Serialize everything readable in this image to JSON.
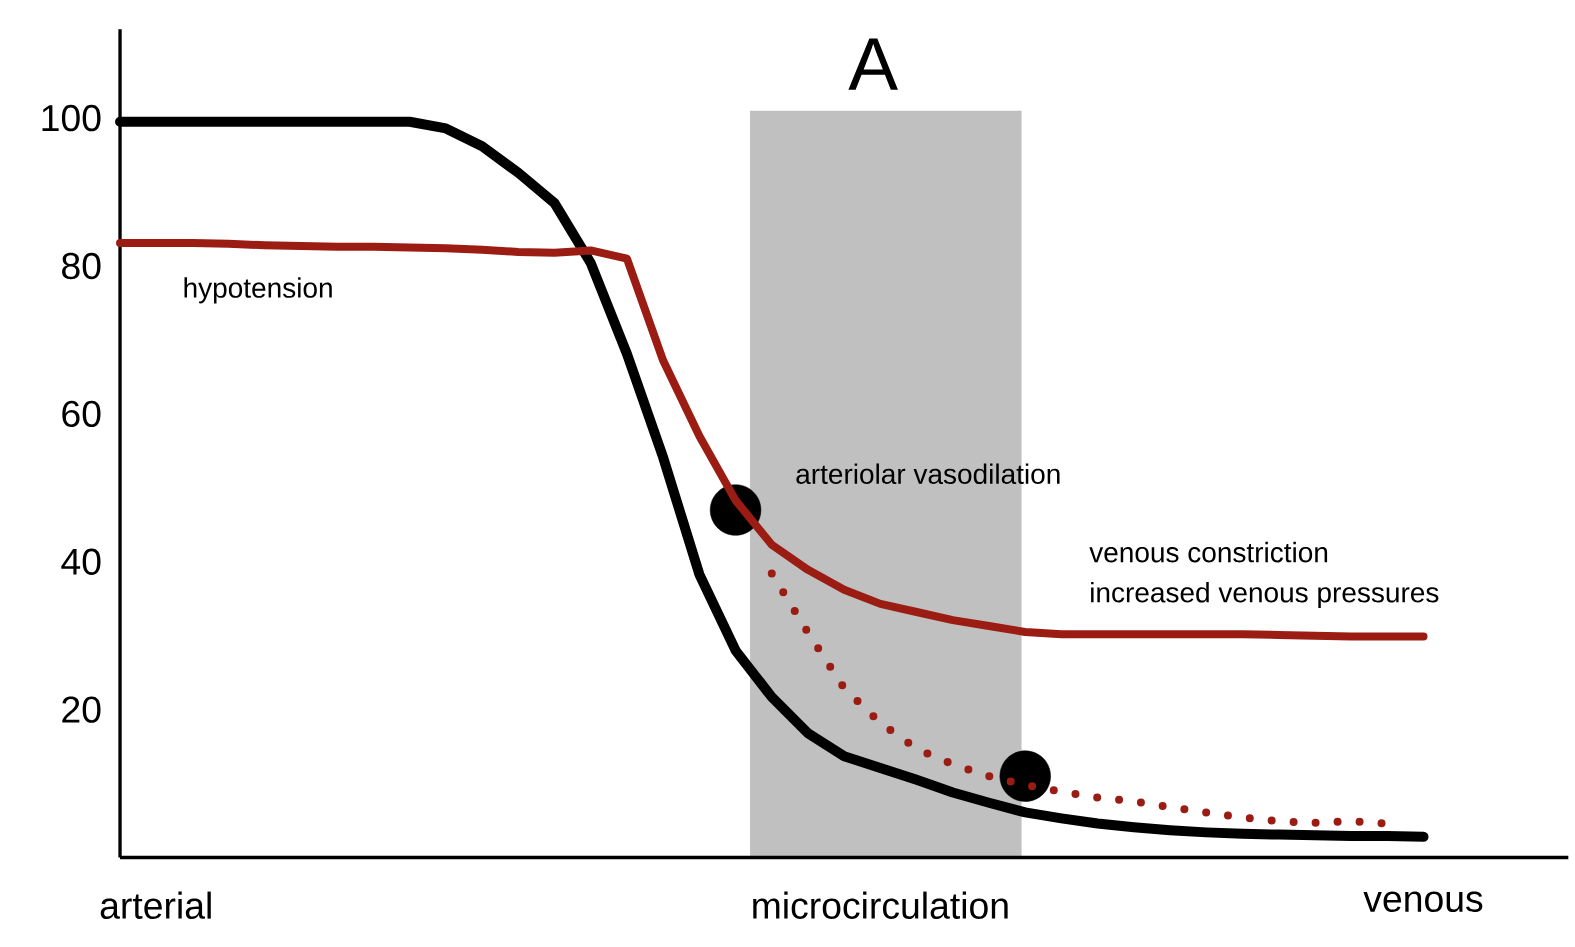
{
  "chart_data": {
    "type": "line",
    "title": "A",
    "ylim": [
      0,
      112
    ],
    "categories": [
      null,
      "arterial",
      null,
      null,
      null,
      null,
      null,
      null,
      null,
      null,
      null,
      null,
      null,
      null,
      null,
      null,
      null,
      null,
      null,
      null,
      null,
      "microcirculation",
      null,
      null,
      null,
      null,
      null,
      null,
      null,
      null,
      null,
      null,
      null,
      null,
      null,
      null,
      "venous",
      null,
      null,
      null,
      null
    ],
    "yticks": [
      20,
      40,
      60,
      80,
      100
    ],
    "series": [
      {
        "type": "scatter",
        "color": "#000000",
        "values": [
          null,
          null,
          null,
          null,
          null,
          null,
          null,
          null,
          null,
          null,
          null,
          null,
          null,
          null,
          null,
          null,
          null,
          47,
          null,
          null,
          null,
          null,
          null,
          null,
          null,
          11,
          null,
          null,
          null,
          null,
          null,
          null,
          null,
          null,
          null,
          null,
          null,
          null,
          null,
          null,
          null
        ]
      },
      {
        "color": "#000000",
        "line_style": "solid",
        "values": [
          99.5,
          99.5,
          99.5,
          99.5,
          99.5,
          99.5,
          99.5,
          99.5,
          99.5,
          98.6,
          96.2,
          92.6,
          88.5,
          80.4,
          68.1,
          54.1,
          38.3,
          28.0,
          21.7,
          16.8,
          13.7,
          12.1,
          10.5,
          8.8,
          7.4,
          6.1,
          5.3,
          4.6,
          4.1,
          3.7,
          3.4,
          3.2,
          3.1,
          3.0,
          2.9,
          2.9,
          2.8,
          null,
          null,
          null,
          null
        ]
      },
      {
        "color": "#9b1c12",
        "line_style": "solid",
        "values": [
          83.1,
          83.1,
          83.1,
          83.0,
          82.8,
          82.7,
          82.6,
          82.6,
          82.5,
          82.4,
          82.2,
          81.9,
          81.8,
          82.1,
          81.0,
          67.2,
          57.0,
          48.3,
          42.3,
          38.9,
          36.2,
          34.3,
          33.2,
          32.1,
          31.3,
          30.5,
          30.2,
          30.2,
          30.2,
          30.2,
          30.2,
          30.2,
          30.1,
          30.0,
          29.9,
          29.9,
          29.9,
          null,
          null,
          null,
          null
        ]
      },
      {
        "color": "#9b1c12",
        "line_style": "dotted",
        "values": [
          null,
          null,
          null,
          null,
          null,
          null,
          null,
          null,
          null,
          null,
          null,
          null,
          null,
          null,
          null,
          null,
          null,
          null,
          38.4,
          30.4,
          22.9,
          18.2,
          14.7,
          12.6,
          11.0,
          9.8,
          8.9,
          8.1,
          7.6,
          6.8,
          6.1,
          5.4,
          4.9,
          4.7,
          4.9,
          4.6,
          null,
          null,
          null,
          null,
          null
        ]
      }
    ],
    "annotations": [
      "hypotension",
      "arteriolar vasodilation",
      "venous constriction",
      "increased venous pressures"
    ]
  }
}
